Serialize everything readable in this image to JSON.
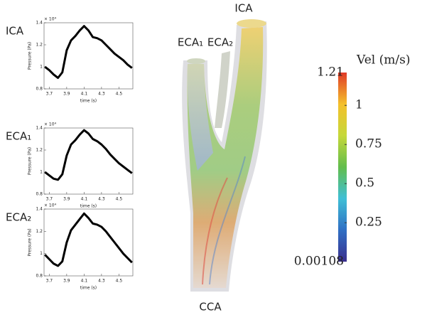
{
  "chart_data": [
    {
      "type": "line",
      "title": "ICA",
      "xlabel": "time (s)",
      "ylabel": "Pressure (Pa)",
      "yscale_label": "× 10⁴",
      "color": "#000000",
      "x": [
        3.65,
        3.7,
        3.75,
        3.8,
        3.85,
        3.9,
        3.95,
        4.0,
        4.05,
        4.1,
        4.15,
        4.2,
        4.25,
        4.3,
        4.35,
        4.4,
        4.45,
        4.5,
        4.55,
        4.6,
        4.65
      ],
      "values": [
        1.0,
        0.97,
        0.93,
        0.9,
        0.95,
        1.15,
        1.24,
        1.28,
        1.33,
        1.37,
        1.33,
        1.27,
        1.26,
        1.24,
        1.2,
        1.16,
        1.12,
        1.09,
        1.06,
        1.02,
        0.99
      ],
      "xlim": [
        3.64,
        4.66
      ],
      "ylim": [
        0.8,
        1.4
      ],
      "xticks": [
        3.7,
        3.9,
        4.1,
        4.3,
        4.5
      ],
      "yticks": [
        0.8,
        1,
        1.2,
        1.4
      ]
    },
    {
      "type": "line",
      "title": "ECA₁",
      "xlabel": "time (s)",
      "ylabel": "Pressure (Pa)",
      "yscale_label": "× 10⁴",
      "color": "#000000",
      "x": [
        3.65,
        3.7,
        3.75,
        3.8,
        3.85,
        3.9,
        3.95,
        4.0,
        4.05,
        4.1,
        4.15,
        4.2,
        4.25,
        4.3,
        4.35,
        4.4,
        4.45,
        4.5,
        4.55,
        4.6,
        4.65
      ],
      "values": [
        1.0,
        0.97,
        0.94,
        0.93,
        0.98,
        1.15,
        1.25,
        1.29,
        1.34,
        1.38,
        1.35,
        1.3,
        1.28,
        1.25,
        1.21,
        1.16,
        1.12,
        1.08,
        1.05,
        1.02,
        0.99
      ],
      "xlim": [
        3.64,
        4.66
      ],
      "ylim": [
        0.8,
        1.4
      ],
      "xticks": [
        3.7,
        3.9,
        4.1,
        4.3,
        4.5
      ],
      "yticks": [
        0.8,
        1,
        1.2,
        1.4
      ]
    },
    {
      "type": "line",
      "title": "ECA₂",
      "xlabel": "time (s)",
      "ylabel": "Pressure (Pa)",
      "yscale_label": "× 10⁴",
      "color": "#000000",
      "x": [
        3.65,
        3.7,
        3.75,
        3.8,
        3.85,
        3.9,
        3.95,
        4.0,
        4.05,
        4.1,
        4.15,
        4.2,
        4.25,
        4.3,
        4.35,
        4.4,
        4.45,
        4.5,
        4.55,
        4.6,
        4.65
      ],
      "values": [
        0.99,
        0.95,
        0.91,
        0.89,
        0.93,
        1.1,
        1.21,
        1.26,
        1.31,
        1.36,
        1.32,
        1.27,
        1.26,
        1.24,
        1.2,
        1.15,
        1.1,
        1.05,
        1.0,
        0.96,
        0.92
      ],
      "xlim": [
        3.64,
        4.66
      ],
      "ylim": [
        0.8,
        1.4
      ],
      "xticks": [
        3.7,
        3.9,
        4.1,
        4.3,
        4.5
      ],
      "yticks": [
        0.8,
        1,
        1.2,
        1.4
      ]
    },
    {
      "type": "colorbar",
      "title": "Vel (m/s)",
      "ylim": [
        0.00108,
        1.21
      ],
      "yticks": [
        0.25,
        0.5,
        0.75,
        1
      ],
      "colors": [
        "#3a2f8e",
        "#2f6fc4",
        "#3fbfd6",
        "#62bd4c",
        "#c6d83a",
        "#f4c02c",
        "#e03a28"
      ]
    },
    {
      "type": "image",
      "annotations": [
        "ICA",
        "ECA₁",
        "ECA₂",
        "CCA"
      ]
    }
  ]
}
